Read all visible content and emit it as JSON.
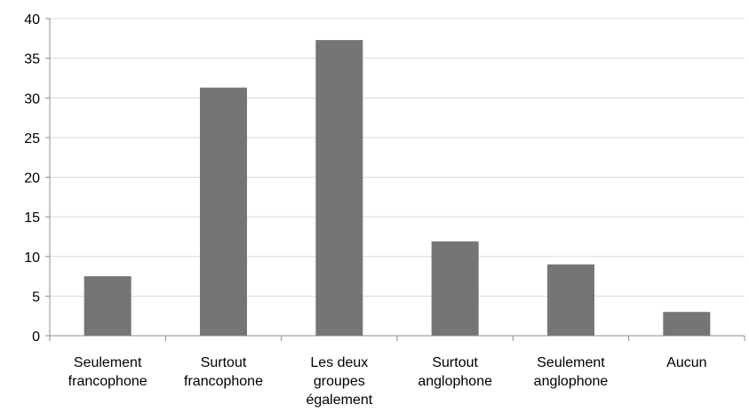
{
  "chart_data": {
    "type": "bar",
    "categories": [
      [
        "Seulement",
        "francophone"
      ],
      [
        "Surtout",
        "francophone"
      ],
      [
        "Les deux",
        "groupes",
        "également"
      ],
      [
        "Surtout",
        "anglophone"
      ],
      [
        "Seulement",
        "anglophone"
      ],
      [
        "Aucun"
      ]
    ],
    "values": [
      7.5,
      31.3,
      37.3,
      11.9,
      9.0,
      3.0
    ],
    "yticks": [
      "0",
      "5",
      "10",
      "15",
      "20",
      "25",
      "30",
      "35",
      "40"
    ],
    "ylim": [
      0,
      40
    ],
    "grid": true,
    "legend": "none",
    "bar_color": "#757575",
    "grid_color": "#d9d9d9",
    "axis_color": "#8c8c8c"
  }
}
